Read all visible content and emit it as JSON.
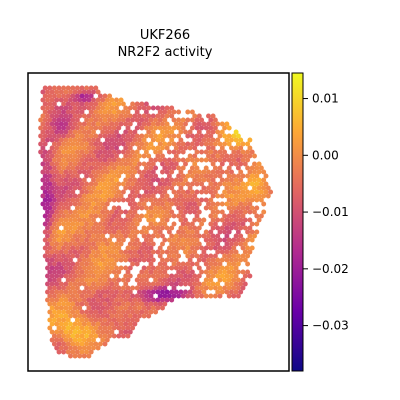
{
  "chart_data": {
    "type": "heatmap",
    "subtype": "spatial-hexbin",
    "title_lines": [
      "UKF266",
      "NR2F2 activity"
    ],
    "xlabel": "",
    "ylabel": "",
    "axes_ticks_visible": false,
    "grid": false,
    "colormap": "plasma",
    "colormap_stops": [
      "#0d0887",
      "#6a00a8",
      "#b12a90",
      "#e16462",
      "#fca636",
      "#f0f921"
    ],
    "color_range": [
      -0.038,
      0.0145
    ],
    "colorbar": {
      "placement": "right",
      "ticks": [
        0.01,
        0.0,
        -0.01,
        -0.02,
        -0.03
      ],
      "tick_labels": [
        "0.01",
        "0.00",
        "−0.01",
        "−0.02",
        "−0.03"
      ]
    },
    "value_distribution": {
      "typical_range": [
        -0.012,
        0.004
      ],
      "high_regions": [
        "upper-right edge",
        "lower-left bottom",
        "right-center"
      ],
      "low_regions": [
        "left edge",
        "lower-center band",
        "top-left corner"
      ]
    }
  }
}
